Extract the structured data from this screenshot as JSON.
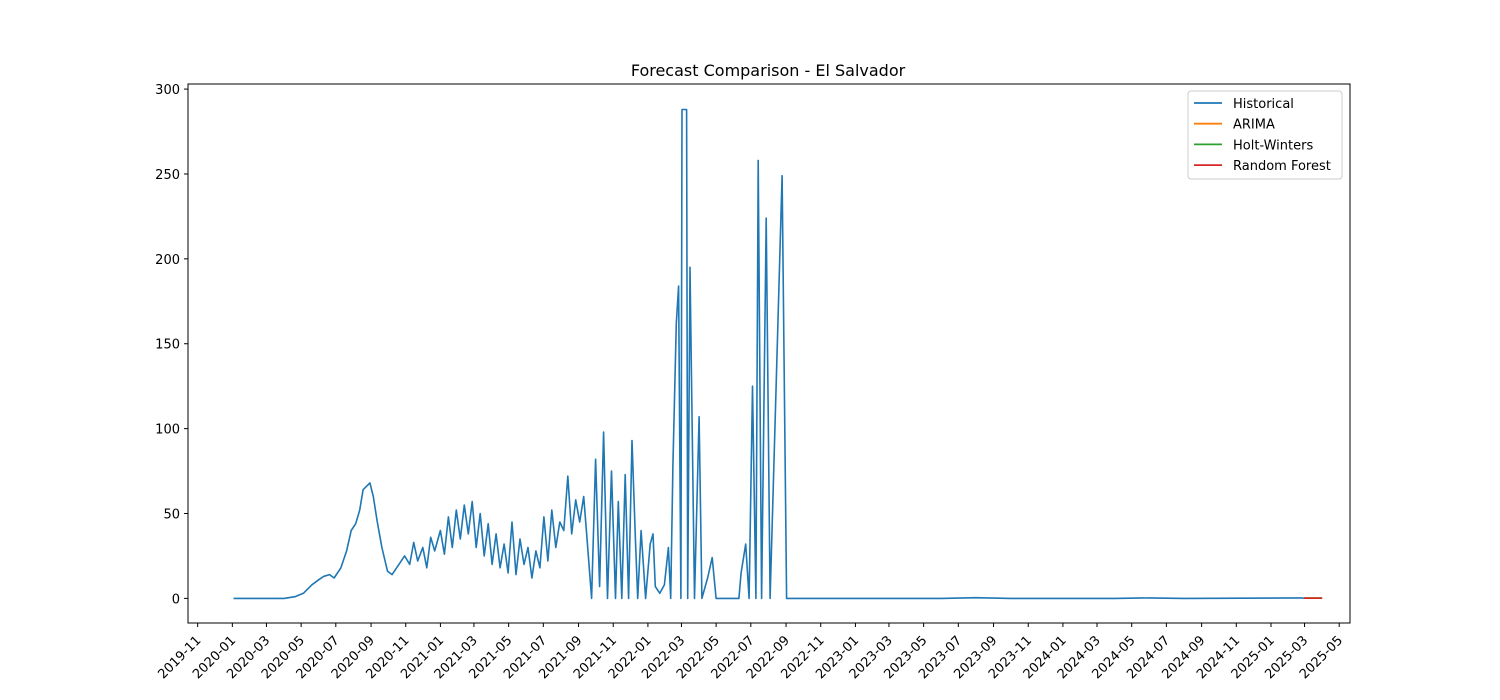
{
  "chart_data": {
    "type": "line",
    "title": "Forecast Comparison - El Salvador",
    "xlabel": "",
    "ylabel": "",
    "x_range": [
      "2019-10-15",
      "2025-05-20"
    ],
    "ylim": [
      -14.5,
      303
    ],
    "grid": false,
    "legend_position": "top-right",
    "x_ticks": [
      "2019-11",
      "2020-01",
      "2020-03",
      "2020-05",
      "2020-07",
      "2020-09",
      "2020-11",
      "2021-01",
      "2021-03",
      "2021-05",
      "2021-07",
      "2021-09",
      "2021-11",
      "2022-01",
      "2022-03",
      "2022-05",
      "2022-07",
      "2022-09",
      "2022-11",
      "2023-01",
      "2023-03",
      "2023-05",
      "2023-07",
      "2023-09",
      "2023-11",
      "2024-01",
      "2024-03",
      "2024-05",
      "2024-07",
      "2024-09",
      "2024-11",
      "2025-01",
      "2025-03",
      "2025-05"
    ],
    "y_ticks": [
      0,
      50,
      100,
      150,
      200,
      250,
      300
    ],
    "series": [
      {
        "name": "Historical",
        "color": "#1f77b4",
        "points": [
          [
            "2020-01-03",
            0
          ],
          [
            "2020-04-01",
            0
          ],
          [
            "2020-04-20",
            1
          ],
          [
            "2020-05-05",
            3
          ],
          [
            "2020-05-20",
            8
          ],
          [
            "2020-06-01",
            11
          ],
          [
            "2020-06-10",
            13
          ],
          [
            "2020-06-20",
            14
          ],
          [
            "2020-06-28",
            12
          ],
          [
            "2020-07-10",
            18
          ],
          [
            "2020-07-20",
            28
          ],
          [
            "2020-07-28",
            40
          ],
          [
            "2020-08-05",
            44
          ],
          [
            "2020-08-12",
            52
          ],
          [
            "2020-08-18",
            64
          ],
          [
            "2020-08-24",
            66
          ],
          [
            "2020-08-30",
            68
          ],
          [
            "2020-09-05",
            60
          ],
          [
            "2020-09-12",
            45
          ],
          [
            "2020-09-20",
            30
          ],
          [
            "2020-09-30",
            16
          ],
          [
            "2020-10-08",
            14
          ],
          [
            "2020-10-20",
            20
          ],
          [
            "2020-10-30",
            25
          ],
          [
            "2020-11-08",
            20
          ],
          [
            "2020-11-15",
            33
          ],
          [
            "2020-11-22",
            22
          ],
          [
            "2020-12-01",
            30
          ],
          [
            "2020-12-08",
            18
          ],
          [
            "2020-12-15",
            36
          ],
          [
            "2020-12-22",
            28
          ],
          [
            "2021-01-01",
            40
          ],
          [
            "2021-01-08",
            26
          ],
          [
            "2021-01-15",
            48
          ],
          [
            "2021-01-22",
            30
          ],
          [
            "2021-01-29",
            52
          ],
          [
            "2021-02-05",
            35
          ],
          [
            "2021-02-12",
            55
          ],
          [
            "2021-02-19",
            38
          ],
          [
            "2021-02-26",
            57
          ],
          [
            "2021-03-05",
            30
          ],
          [
            "2021-03-12",
            50
          ],
          [
            "2021-03-19",
            25
          ],
          [
            "2021-03-26",
            44
          ],
          [
            "2021-04-02",
            20
          ],
          [
            "2021-04-09",
            38
          ],
          [
            "2021-04-16",
            18
          ],
          [
            "2021-04-23",
            32
          ],
          [
            "2021-04-30",
            15
          ],
          [
            "2021-05-07",
            45
          ],
          [
            "2021-05-14",
            14
          ],
          [
            "2021-05-21",
            35
          ],
          [
            "2021-05-28",
            20
          ],
          [
            "2021-06-04",
            30
          ],
          [
            "2021-06-11",
            12
          ],
          [
            "2021-06-18",
            28
          ],
          [
            "2021-06-25",
            18
          ],
          [
            "2021-07-02",
            48
          ],
          [
            "2021-07-09",
            22
          ],
          [
            "2021-07-16",
            52
          ],
          [
            "2021-07-23",
            30
          ],
          [
            "2021-07-30",
            45
          ],
          [
            "2021-08-06",
            40
          ],
          [
            "2021-08-13",
            72
          ],
          [
            "2021-08-20",
            38
          ],
          [
            "2021-08-27",
            58
          ],
          [
            "2021-09-03",
            45
          ],
          [
            "2021-09-10",
            60
          ],
          [
            "2021-09-17",
            30
          ],
          [
            "2021-09-24",
            0
          ],
          [
            "2021-10-01",
            82
          ],
          [
            "2021-10-08",
            7
          ],
          [
            "2021-10-15",
            98
          ],
          [
            "2021-10-22",
            0
          ],
          [
            "2021-10-29",
            75
          ],
          [
            "2021-11-05",
            0
          ],
          [
            "2021-11-10",
            57
          ],
          [
            "2021-11-16",
            0
          ],
          [
            "2021-11-22",
            73
          ],
          [
            "2021-11-28",
            0
          ],
          [
            "2021-12-04",
            93
          ],
          [
            "2021-12-10",
            35
          ],
          [
            "2021-12-14",
            0
          ],
          [
            "2021-12-20",
            40
          ],
          [
            "2021-12-28",
            0
          ],
          [
            "2022-01-05",
            32
          ],
          [
            "2022-01-10",
            38
          ],
          [
            "2022-01-14",
            7
          ],
          [
            "2022-01-22",
            3
          ],
          [
            "2022-01-30",
            8
          ],
          [
            "2022-02-06",
            30
          ],
          [
            "2022-02-10",
            0
          ],
          [
            "2022-02-14",
            78
          ],
          [
            "2022-02-20",
            162
          ],
          [
            "2022-02-24",
            184
          ],
          [
            "2022-02-28",
            0
          ],
          [
            "2022-03-02",
            288
          ],
          [
            "2022-03-10",
            288
          ],
          [
            "2022-03-12",
            0
          ],
          [
            "2022-03-16",
            195
          ],
          [
            "2022-03-24",
            0
          ],
          [
            "2022-04-01",
            107
          ],
          [
            "2022-04-06",
            0
          ],
          [
            "2022-04-16",
            12
          ],
          [
            "2022-04-24",
            24
          ],
          [
            "2022-05-01",
            0
          ],
          [
            "2022-06-10",
            0
          ],
          [
            "2022-06-14",
            15
          ],
          [
            "2022-06-22",
            32
          ],
          [
            "2022-06-28",
            0
          ],
          [
            "2022-07-04",
            125
          ],
          [
            "2022-07-10",
            0
          ],
          [
            "2022-07-14",
            258
          ],
          [
            "2022-07-20",
            0
          ],
          [
            "2022-07-28",
            224
          ],
          [
            "2022-08-04",
            0
          ],
          [
            "2022-08-25",
            249
          ],
          [
            "2022-09-02",
            0
          ],
          [
            "2023-06-01",
            0
          ],
          [
            "2023-08-01",
            0.4
          ],
          [
            "2023-10-01",
            0
          ],
          [
            "2024-04-01",
            0
          ],
          [
            "2024-06-01",
            0.3
          ],
          [
            "2024-08-01",
            0
          ],
          [
            "2025-02-25",
            0.3
          ],
          [
            "2025-02-28",
            0
          ]
        ]
      },
      {
        "name": "ARIMA",
        "color": "#ff7f0e",
        "points": [
          [
            "2025-02-28",
            0.2
          ],
          [
            "2025-04-01",
            0.2
          ]
        ]
      },
      {
        "name": "Holt-Winters",
        "color": "#2ca02c",
        "points": [
          [
            "2025-02-28",
            0.15
          ],
          [
            "2025-04-01",
            0.15
          ]
        ]
      },
      {
        "name": "Random Forest",
        "color": "#d62728",
        "points": [
          [
            "2025-02-28",
            0.1
          ],
          [
            "2025-04-01",
            0.1
          ]
        ]
      }
    ]
  }
}
